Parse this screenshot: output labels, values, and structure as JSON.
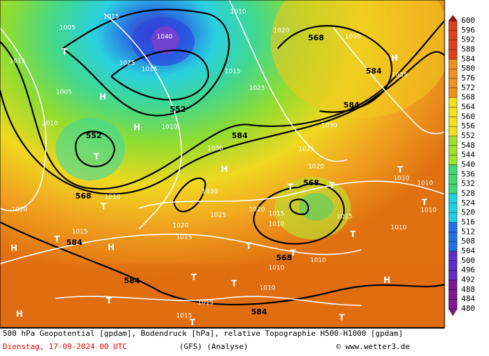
{
  "map": {
    "labels": [
      "1015",
      "1005",
      "1015",
      "T",
      "1040",
      "1025",
      "1015",
      "H",
      "552",
      "1010",
      "1020",
      "568",
      "1030",
      "H",
      "584",
      "1035",
      "584",
      "1025",
      "1015",
      "1005",
      "1010",
      "552",
      "T",
      "H",
      "1010",
      "584",
      "1030",
      "1030",
      "H",
      "1025",
      "1020",
      "T",
      "1010",
      "568",
      "T",
      "T",
      "1010",
      "568",
      "1010",
      "1020",
      "T",
      "1030",
      "1025",
      "1020",
      "1015",
      "1010",
      "1015",
      "1010",
      "1010",
      "T",
      "1015",
      "1020",
      "1015",
      "T",
      "584",
      "H",
      "H",
      "T",
      "T",
      "568",
      "1010",
      "1010",
      "T",
      "584",
      "T",
      "T",
      "1010",
      "H",
      "T",
      "1015",
      "584",
      "H",
      "1015",
      "T",
      "T"
    ]
  },
  "scale": {
    "labels": [
      "600",
      "596",
      "592",
      "588",
      "584",
      "580",
      "576",
      "572",
      "568",
      "564",
      "560",
      "556",
      "552",
      "548",
      "544",
      "540",
      "536",
      "532",
      "528",
      "524",
      "520",
      "516",
      "512",
      "508",
      "504",
      "500",
      "496",
      "492",
      "488",
      "484",
      "480"
    ]
  },
  "footer": {
    "description": "500 hPa Geopotential [gpdam], Bodendruck [hPa], relative Topographie H500-H1000 [gpdam]",
    "date": "Dienstag, 17-09-2024  00 UTC",
    "model": "(GFS)  (Analyse)",
    "source": "© www.wetter3.de"
  }
}
